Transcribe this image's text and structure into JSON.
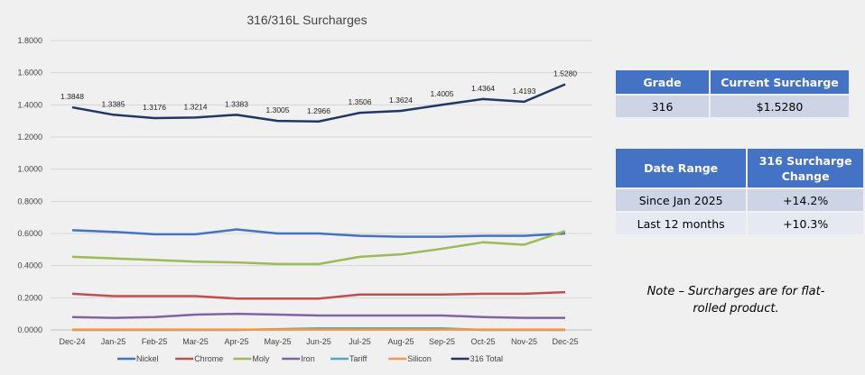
{
  "chart_data": {
    "type": "line",
    "title": "316/316L Surcharges",
    "categories": [
      "Dec-24",
      "Jan-25",
      "Feb-25",
      "Mar-25",
      "Apr-25",
      "May-25",
      "Jun-25",
      "Jul-25",
      "Aug-25",
      "Sep-25",
      "Oct-25",
      "Nov-25",
      "Dec-25"
    ],
    "ylim": [
      0,
      1.8
    ],
    "yticks": [
      "0.0000",
      "0.2000",
      "0.4000",
      "0.6000",
      "0.8000",
      "1.0000",
      "1.2000",
      "1.4000",
      "1.6000",
      "1.8000"
    ],
    "grid": true,
    "legend": "bottom",
    "series": [
      {
        "name": "Nickel",
        "color": "#4472c4",
        "values": [
          0.62,
          0.61,
          0.595,
          0.595,
          0.625,
          0.6,
          0.6,
          0.585,
          0.58,
          0.58,
          0.585,
          0.585,
          0.6
        ]
      },
      {
        "name": "Chrome",
        "color": "#c0504d",
        "values": [
          0.225,
          0.21,
          0.21,
          0.21,
          0.195,
          0.195,
          0.195,
          0.22,
          0.22,
          0.22,
          0.225,
          0.225,
          0.235
        ]
      },
      {
        "name": "Moly",
        "color": "#9bbb59",
        "values": [
          0.455,
          0.445,
          0.435,
          0.425,
          0.42,
          0.41,
          0.41,
          0.455,
          0.47,
          0.505,
          0.545,
          0.53,
          0.615
        ]
      },
      {
        "name": "Iron",
        "color": "#8064a2",
        "values": [
          0.08,
          0.075,
          0.08,
          0.095,
          0.1,
          0.095,
          0.09,
          0.09,
          0.09,
          0.09,
          0.08,
          0.075,
          0.075
        ]
      },
      {
        "name": "Tariff",
        "color": "#4bacc6",
        "values": [
          0,
          0,
          0,
          0,
          0,
          0.005,
          0.01,
          0.01,
          0.01,
          0.01,
          0,
          0,
          0
        ]
      },
      {
        "name": "Silicon",
        "color": "#f79646",
        "values": [
          0.002,
          0.002,
          0.002,
          0.002,
          0.002,
          0.002,
          0.002,
          0.002,
          0.002,
          0.002,
          0.002,
          0.002,
          0.002
        ]
      },
      {
        "name": "316 Total",
        "color": "#1f3864",
        "values": [
          1.3848,
          1.3385,
          1.3176,
          1.3214,
          1.3383,
          1.3005,
          1.2966,
          1.3506,
          1.3624,
          1.4005,
          1.4364,
          1.4193,
          1.528
        ],
        "labels": [
          "1.3848",
          "1.3385",
          "1.3176",
          "1.3214",
          "1.3383",
          "1.3005",
          "1.2966",
          "1.3506",
          "1.3624",
          "1.4005",
          "1.4364",
          "1.4193",
          "1.5280"
        ]
      }
    ]
  },
  "grade_table": {
    "headers": [
      "Grade",
      "Current Surcharge"
    ],
    "rows": [
      [
        "316",
        "$1.5280"
      ]
    ]
  },
  "change_table": {
    "headers": [
      "Date Range",
      "316 Surcharge Change"
    ],
    "rows": [
      [
        "Since Jan 2025",
        "+14.2%"
      ],
      [
        "Last 12 months",
        "+10.3%"
      ]
    ]
  },
  "note": "Note – Surcharges are for flat-rolled product."
}
